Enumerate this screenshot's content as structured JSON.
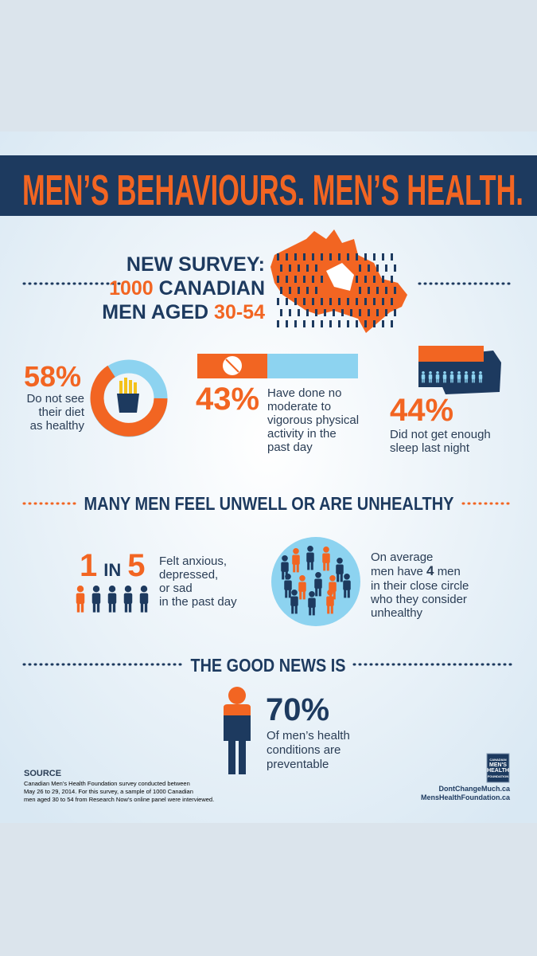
{
  "header": {
    "title": "MEN’S BEHAVIOURS. MEN’S HEALTH."
  },
  "survey": {
    "line1": "NEW SURVEY:",
    "count": "1000",
    "country": "CANADIAN",
    "men_aged": "MEN AGED",
    "ages": "30-54"
  },
  "stats": [
    {
      "percent": "58%",
      "lines": [
        "Do not see",
        "their diet",
        "as healthy"
      ]
    },
    {
      "percent": "43%",
      "lines": [
        "Have done no",
        "moderate to",
        "vigorous physical",
        "activity in the",
        "past day"
      ]
    },
    {
      "percent": "44%",
      "lines": [
        "Did not get enough",
        "sleep last night"
      ]
    }
  ],
  "unwell": {
    "heading": "MANY MEN FEEL UNWELL OR ARE UNHEALTHY",
    "ratio": {
      "one": "1",
      "in": "IN",
      "five": "5",
      "lines": [
        "Felt anxious,",
        "depressed,",
        "or sad",
        "in the past day"
      ]
    },
    "circle": {
      "line1": "On average",
      "line2_start": "men have",
      "line2_number": "4",
      "line2_end": "men",
      "lines": [
        "in their close circle",
        "who they consider",
        "unhealthy"
      ]
    }
  },
  "good_news": {
    "heading": "THE GOOD NEWS IS",
    "percent": "70%",
    "lines": [
      "Of men’s health",
      "conditions are",
      "preventable"
    ]
  },
  "source": {
    "heading": "SOURCE",
    "lines": [
      "Canadian Men’s Health Foundation survey conducted between",
      "May 26 to 29, 2014. For this survey, a sample of 1000 Canadian",
      "men aged 30 to 54 from Research Now’s online panel were interviewed."
    ]
  },
  "footer": {
    "logo": [
      "CANADIAN",
      "MEN'S",
      "HEALTH",
      "FOUNDATION"
    ],
    "links": [
      "DontChangeMuch.ca",
      "MensHealthFoundation.ca"
    ]
  }
}
